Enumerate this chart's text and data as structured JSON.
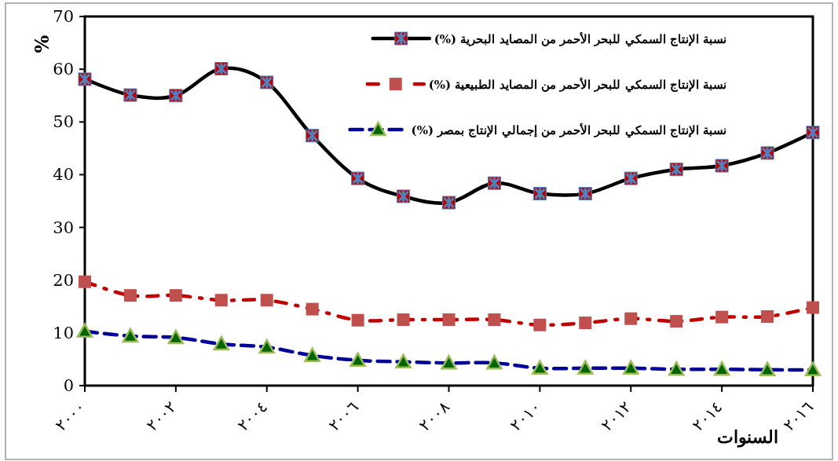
{
  "chart_data": {
    "type": "line",
    "ylabel": "%",
    "xlabel": "السنوات",
    "x": [
      2000,
      2001,
      2002,
      2003,
      2004,
      2005,
      2006,
      2007,
      2008,
      2009,
      2010,
      2011,
      2012,
      2013,
      2014,
      2015,
      2016
    ],
    "xlim": [
      2000,
      2016
    ],
    "xticks": [
      {
        "value": 2000,
        "label": "٢٠٠٠"
      },
      {
        "value": 2002,
        "label": "٢٠٠٢"
      },
      {
        "value": 2004,
        "label": "٢٠٠٤"
      },
      {
        "value": 2006,
        "label": "٢٠٠٦"
      },
      {
        "value": 2008,
        "label": "٢٠٠٨"
      },
      {
        "value": 2010,
        "label": "٢٠١٠"
      },
      {
        "value": 2012,
        "label": "٢٠١٢"
      },
      {
        "value": 2014,
        "label": "٢٠١٤"
      },
      {
        "value": 2016,
        "label": "٢٠١٦"
      }
    ],
    "ylim": [
      0,
      70
    ],
    "yticks": [
      0,
      10,
      20,
      30,
      40,
      50,
      60,
      70
    ],
    "grid": false,
    "legend": "top right",
    "series": [
      {
        "name": "نسبة الإنتاج السمكي للبحر الأحمر من المصايد البحرية (%)",
        "color": "#000000",
        "marker": "square",
        "line_style": "solid",
        "values": [
          58.1,
          55.1,
          55.0,
          60.1,
          57.5,
          47.4,
          39.3,
          35.9,
          34.7,
          38.4,
          36.4,
          36.4,
          39.3,
          41.0,
          41.7,
          44.1,
          48.0
        ]
      },
      {
        "name": "نسبة الإنتاج السمكي للبحر الأحمر من المصايد الطبيعية (%)",
        "color": "#c00000",
        "marker": "square",
        "line_style": "dashdot",
        "values": [
          19.7,
          17.1,
          17.1,
          16.2,
          16.2,
          14.5,
          12.4,
          12.5,
          12.5,
          12.5,
          11.5,
          11.9,
          12.7,
          12.2,
          13.0,
          13.1,
          14.8
        ]
      },
      {
        "name": "نسبة الإنتاج السمكي للبحر الأحمر من إجمالي الإنتاج بمصر (%)",
        "color": "#000099",
        "marker": "triangle",
        "line_style": "dashed",
        "values": [
          10.3,
          9.4,
          9.1,
          7.9,
          7.3,
          5.7,
          4.8,
          4.5,
          4.3,
          4.3,
          3.3,
          3.3,
          3.3,
          3.1,
          3.1,
          3.0,
          3.0
        ]
      }
    ]
  }
}
